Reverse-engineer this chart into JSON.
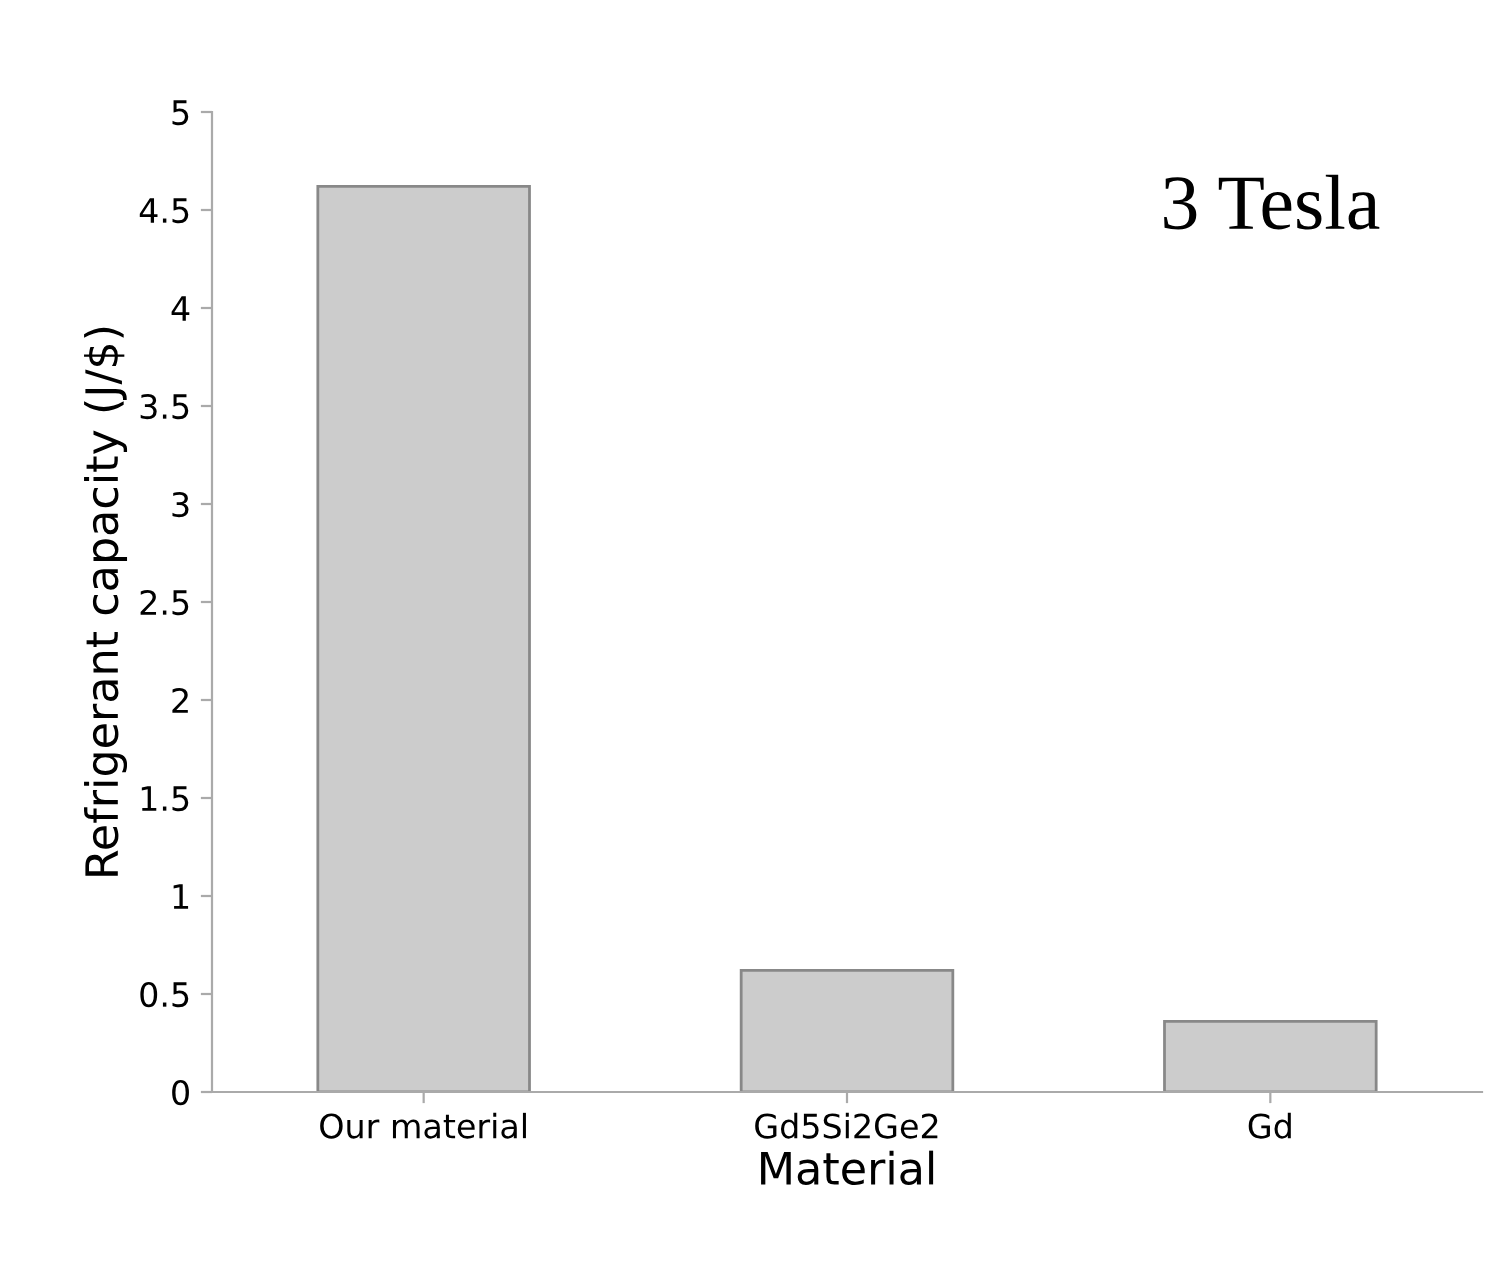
{
  "chart_data": {
    "type": "bar",
    "categories": [
      "Our material",
      "Gd5Si2Ge2",
      "Gd"
    ],
    "values": [
      4.62,
      0.62,
      0.36
    ],
    "color": "#cccccc",
    "xlabel": "Material",
    "ylabel": "Refrigerant capacity (J/$)",
    "ylim": [
      0,
      5
    ],
    "yticks": [
      0,
      0.5,
      1,
      1.5,
      2,
      2.5,
      3,
      3.5,
      4,
      4.5,
      5
    ],
    "annotations": [
      "3 Tesla"
    ],
    "grid": false,
    "legend": false
  }
}
